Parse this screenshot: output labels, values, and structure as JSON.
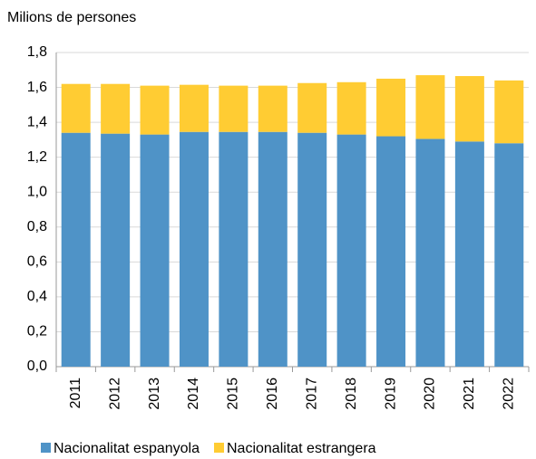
{
  "chart_data": {
    "type": "stacked_bar",
    "ylabel": "Milions de persones",
    "categories": [
      "2011",
      "2012",
      "2013",
      "2014",
      "2015",
      "2016",
      "2017",
      "2018",
      "2019",
      "2020",
      "2021",
      "2022"
    ],
    "series": [
      {
        "name": "Nacionalitat espanyola",
        "color": "#4f93c7",
        "values": [
          1.34,
          1.335,
          1.33,
          1.345,
          1.345,
          1.345,
          1.34,
          1.33,
          1.32,
          1.305,
          1.29,
          1.28
        ]
      },
      {
        "name": "Nacionalitat estrangera",
        "color": "#ffcc33",
        "values": [
          0.28,
          0.285,
          0.28,
          0.27,
          0.265,
          0.265,
          0.285,
          0.3,
          0.33,
          0.365,
          0.375,
          0.36
        ]
      }
    ],
    "ylim": [
      0,
      1.8
    ],
    "yticks": [
      {
        "value": 0,
        "label": "0,0"
      },
      {
        "value": 0.2,
        "label": "0,2"
      },
      {
        "value": 0.4,
        "label": "0,4"
      },
      {
        "value": 0.6,
        "label": "0,6"
      },
      {
        "value": 0.8,
        "label": "0,8"
      },
      {
        "value": 1.0,
        "label": "1,0"
      },
      {
        "value": 1.2,
        "label": "1,2"
      },
      {
        "value": 1.4,
        "label": "1,4"
      },
      {
        "value": 1.6,
        "label": "1,6"
      },
      {
        "value": 1.8,
        "label": "1,8"
      }
    ],
    "grid": true,
    "legend": "bottom"
  }
}
